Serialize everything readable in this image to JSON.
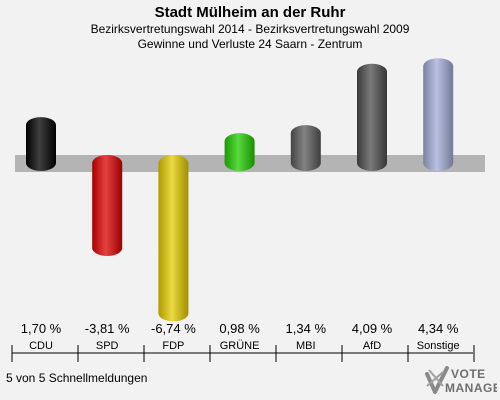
{
  "header": {
    "title": "Stadt Mülheim an der Ruhr",
    "subtitle1": "Bezirksvertretungswahl 2014 - Bezirksvertretungswahl 2009",
    "subtitle2": "Gewinne und Verluste 24 Saarn - Zentrum"
  },
  "footer": {
    "note": "5 von 5 Schnellmeldungen"
  },
  "logo": {
    "line1": "VOTE",
    "line2": "MANAGER",
    "icon": "checkmark-x-icon"
  },
  "chart_data": {
    "type": "bar",
    "categories": [
      "CDU",
      "SPD",
      "FDP",
      "GRÜNE",
      "MBI",
      "AfD",
      "Sonstige"
    ],
    "values": [
      1.7,
      -3.81,
      -6.74,
      0.98,
      1.34,
      4.09,
      4.34
    ],
    "value_labels": [
      "1,70 %",
      "-3,81 %",
      "-6,74 %",
      "0,98 %",
      "1,34 %",
      "4,09 %",
      "4,34 %"
    ],
    "colors": [
      "#000000",
      "#dd0000",
      "#e6cc00",
      "#22cc00",
      "#5a5a5a",
      "#4d4d4d",
      "#a3acd8"
    ],
    "ylim": [
      -7,
      5
    ],
    "grid": false,
    "legend": "none"
  }
}
